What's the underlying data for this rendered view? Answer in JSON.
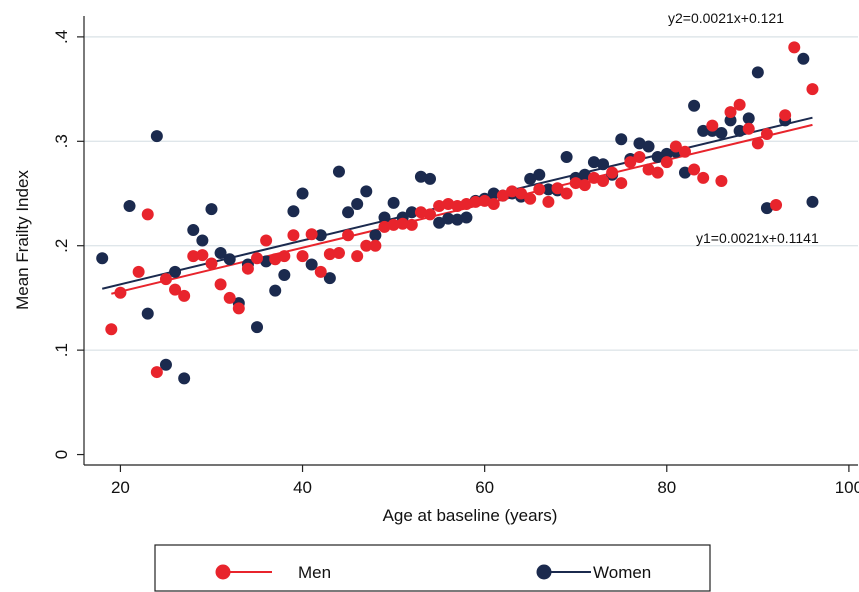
{
  "chart_data": {
    "type": "scatter",
    "title": "",
    "xlabel": "Age at baseline (years)",
    "ylabel": "Mean Frailty Index",
    "xlim": [
      16,
      101
    ],
    "ylim": [
      -0.01,
      0.42
    ],
    "x_ticks": [
      20,
      40,
      60,
      80,
      100
    ],
    "x_tick_labels": [
      "20",
      "40",
      "60",
      "80",
      "100"
    ],
    "y_ticks": [
      0,
      0.1,
      0.2,
      0.3,
      0.4
    ],
    "y_tick_labels": [
      "0",
      ".1",
      ".2",
      ".3",
      ".4"
    ],
    "grid": "horizontal",
    "legend_position": "bottom",
    "series": [
      {
        "name": "Men",
        "color": "#e8242c",
        "x": [
          19,
          20,
          22,
          23,
          24,
          25,
          26,
          27,
          28,
          29,
          30,
          31,
          32,
          33,
          34,
          35,
          36,
          37,
          38,
          39,
          40,
          41,
          42,
          43,
          44,
          45,
          46,
          47,
          48,
          49,
          50,
          51,
          52,
          53,
          54,
          55,
          56,
          57,
          58,
          59,
          60,
          61,
          62,
          63,
          64,
          65,
          66,
          67,
          68,
          69,
          70,
          71,
          72,
          73,
          74,
          75,
          76,
          77,
          78,
          79,
          80,
          81,
          82,
          83,
          84,
          85,
          86,
          87,
          88,
          89,
          90,
          91,
          92,
          93,
          94,
          96
        ],
        "y": [
          0.12,
          0.155,
          0.175,
          0.23,
          0.079,
          0.168,
          0.158,
          0.152,
          0.19,
          0.191,
          0.183,
          0.163,
          0.15,
          0.14,
          0.178,
          0.188,
          0.205,
          0.187,
          0.19,
          0.21,
          0.19,
          0.211,
          0.175,
          0.192,
          0.193,
          0.21,
          0.19,
          0.2,
          0.2,
          0.218,
          0.22,
          0.221,
          0.22,
          0.232,
          0.23,
          0.238,
          0.24,
          0.238,
          0.24,
          0.242,
          0.243,
          0.24,
          0.248,
          0.252,
          0.25,
          0.245,
          0.254,
          0.242,
          0.255,
          0.25,
          0.26,
          0.258,
          0.265,
          0.262,
          0.27,
          0.26,
          0.28,
          0.285,
          0.273,
          0.27,
          0.28,
          0.295,
          0.29,
          0.273,
          0.265,
          0.315,
          0.262,
          0.328,
          0.335,
          0.312,
          0.298,
          0.307,
          0.239,
          0.325,
          0.39,
          0.35
        ],
        "fit": {
          "slope": 0.0021,
          "intercept": 0.1141,
          "x_range": [
            19,
            96
          ],
          "label": "y1=0.0021x+0.1141"
        }
      },
      {
        "name": "Women",
        "color": "#1b2a4e",
        "x": [
          18,
          21,
          23,
          24,
          25,
          26,
          27,
          28,
          29,
          30,
          31,
          32,
          33,
          34,
          35,
          36,
          37,
          38,
          39,
          40,
          41,
          42,
          43,
          44,
          45,
          46,
          47,
          48,
          49,
          50,
          51,
          52,
          53,
          54,
          55,
          56,
          57,
          58,
          59,
          60,
          61,
          62,
          63,
          64,
          65,
          66,
          67,
          68,
          69,
          70,
          71,
          72,
          73,
          74,
          75,
          76,
          77,
          78,
          79,
          80,
          81,
          82,
          83,
          84,
          85,
          86,
          87,
          88,
          89,
          90,
          91,
          93,
          95,
          96
        ],
        "y": [
          0.188,
          0.238,
          0.135,
          0.305,
          0.086,
          0.175,
          0.073,
          0.215,
          0.205,
          0.235,
          0.193,
          0.187,
          0.145,
          0.182,
          0.122,
          0.185,
          0.157,
          0.172,
          0.233,
          0.25,
          0.182,
          0.21,
          0.169,
          0.271,
          0.232,
          0.24,
          0.252,
          0.21,
          0.227,
          0.241,
          0.227,
          0.232,
          0.266,
          0.264,
          0.222,
          0.226,
          0.225,
          0.227,
          0.243,
          0.245,
          0.25,
          0.248,
          0.25,
          0.247,
          0.264,
          0.268,
          0.254,
          0.253,
          0.285,
          0.265,
          0.268,
          0.28,
          0.278,
          0.268,
          0.302,
          0.283,
          0.298,
          0.295,
          0.285,
          0.288,
          0.29,
          0.27,
          0.334,
          0.31,
          0.31,
          0.308,
          0.32,
          0.31,
          0.322,
          0.366,
          0.236,
          0.32,
          0.379,
          0.242
        ],
        "fit": {
          "slope": 0.0021,
          "intercept": 0.121,
          "x_range": [
            18,
            96
          ],
          "label": "y2=0.0021x+0.121"
        }
      }
    ]
  }
}
